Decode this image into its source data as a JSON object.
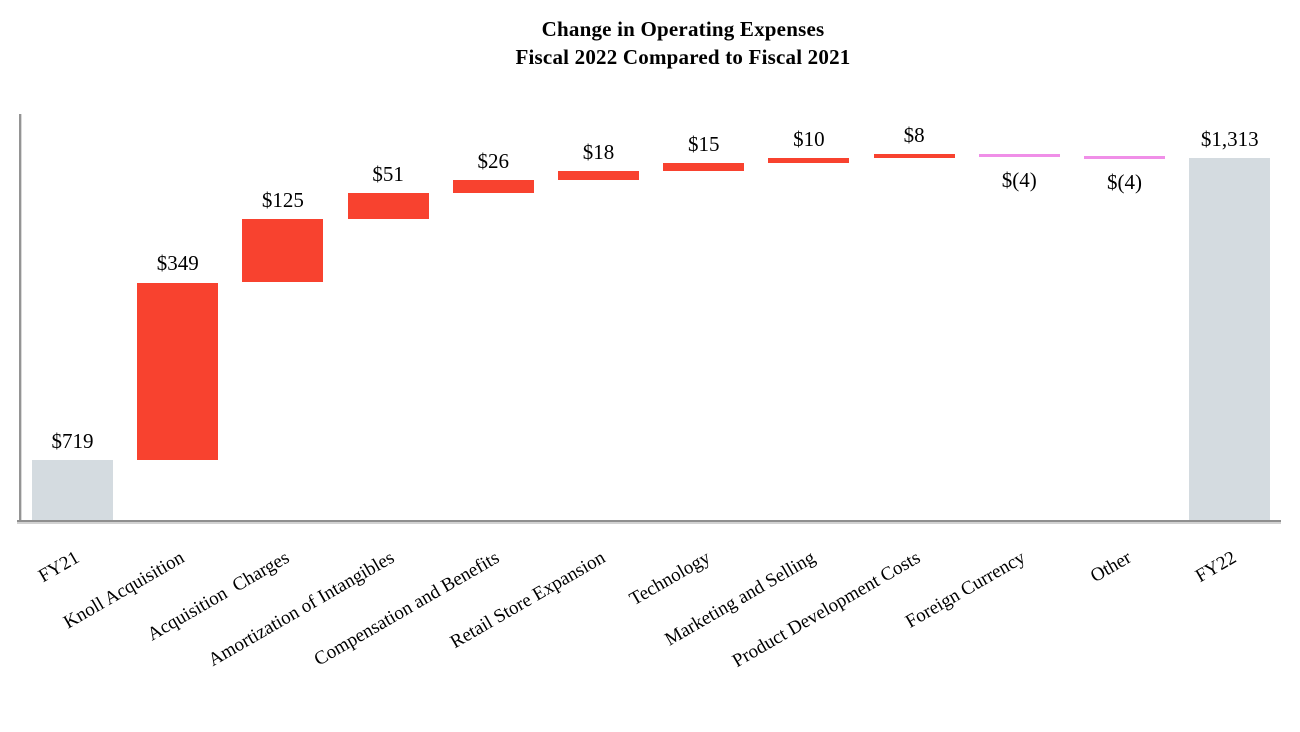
{
  "chart_data": {
    "type": "bar",
    "subtype": "waterfall",
    "title": "Change in Operating Expenses",
    "subtitle": "Fiscal 2022 Compared to Fiscal 2021",
    "categories": [
      "FY21",
      "Knoll Acquisition",
      "Acquisition  Charges",
      "Amortization of Intangibles",
      "Compensation and Benefits",
      "Retail Store Expansion",
      "Technology",
      "Marketing and Selling",
      "Product Development Costs",
      "Foreign Currency",
      "Other",
      "FY22"
    ],
    "values": [
      719,
      349,
      125,
      51,
      26,
      18,
      15,
      10,
      8,
      -4,
      -4,
      1313
    ],
    "value_labels": [
      "$719",
      "$349",
      "$125",
      "$51",
      "$26",
      "$18",
      "$15",
      "$10",
      "$8",
      "$(4)",
      "$(4)",
      "$1,313"
    ],
    "roles": [
      "total",
      "increase",
      "increase",
      "increase",
      "increase",
      "increase",
      "increase",
      "increase",
      "increase",
      "decrease",
      "decrease",
      "total"
    ],
    "colors": {
      "total": "#d4dbe0",
      "increase": "#f8422f",
      "decrease": "#f08fe8",
      "axis_line": "#8f8f8f"
    },
    "layout": {
      "ylim": [
        600,
        1400
      ],
      "gridlines": false,
      "connectors": false,
      "x_label_rotation_deg": -30,
      "value_label_position": "above-bar (below bar for decreases)"
    }
  }
}
